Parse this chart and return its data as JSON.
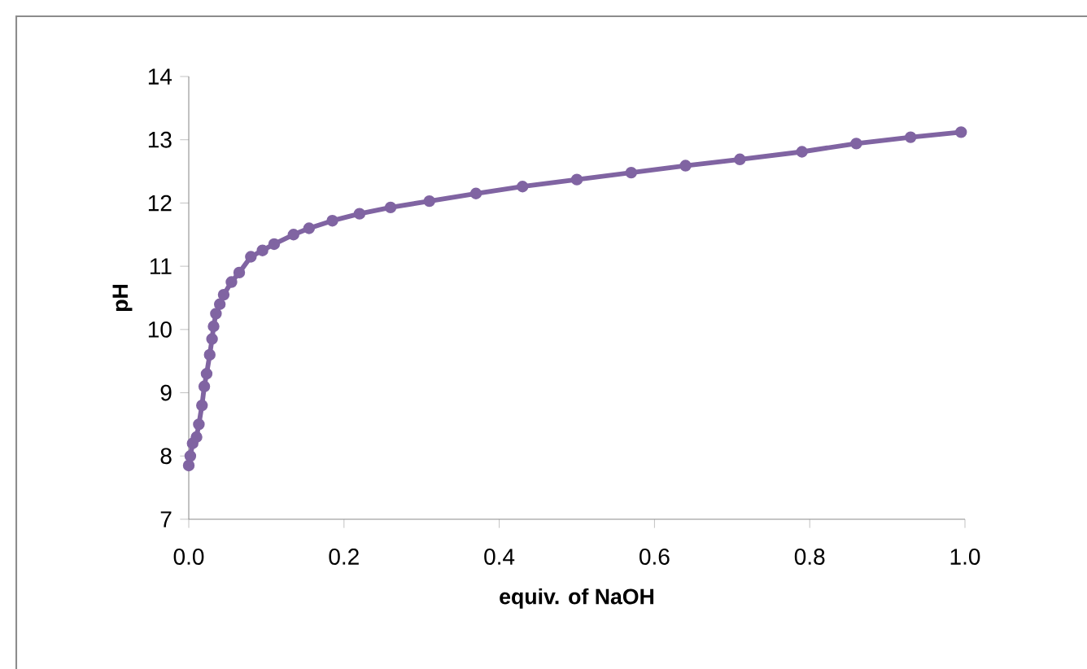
{
  "chart_data": {
    "type": "line",
    "xlabel": "equiv. of NaOH",
    "ylabel": "pH",
    "x": [
      0,
      0.002,
      0.005,
      0.01,
      0.013,
      0.017,
      0.02,
      0.023,
      0.027,
      0.03,
      0.032,
      0.035,
      0.04,
      0.045,
      0.055,
      0.065,
      0.08,
      0.095,
      0.11,
      0.135,
      0.155,
      0.185,
      0.22,
      0.26,
      0.31,
      0.37,
      0.43,
      0.5,
      0.57,
      0.64,
      0.71,
      0.79,
      0.86,
      0.93,
      0.995
    ],
    "series": [
      {
        "color": "#8064a2",
        "values": [
          7.85,
          8.0,
          8.2,
          8.3,
          8.5,
          8.8,
          9.1,
          9.3,
          9.6,
          9.85,
          10.05,
          10.25,
          10.4,
          10.55,
          10.75,
          10.9,
          11.15,
          11.25,
          11.35,
          11.5,
          11.6,
          11.72,
          11.83,
          11.93,
          12.03,
          12.15,
          12.26,
          12.37,
          12.48,
          12.59,
          12.69,
          12.81,
          12.94,
          13.04,
          13.12
        ]
      }
    ],
    "xlim": [
      0,
      1
    ],
    "ylim": [
      7,
      14
    ],
    "xticks": [
      {
        "value": 0,
        "label": "0.0"
      },
      {
        "value": 0.2,
        "label": "0.2"
      },
      {
        "value": 0.4,
        "label": "0.4"
      },
      {
        "value": 0.6,
        "label": "0.6"
      },
      {
        "value": 0.8,
        "label": "0.8"
      },
      {
        "value": 1,
        "label": "1.0"
      }
    ],
    "yticks": [
      7,
      8,
      9,
      10,
      11,
      12,
      13,
      14
    ],
    "grid": false,
    "legend": false,
    "marker": "circle",
    "line_style": "solid"
  }
}
